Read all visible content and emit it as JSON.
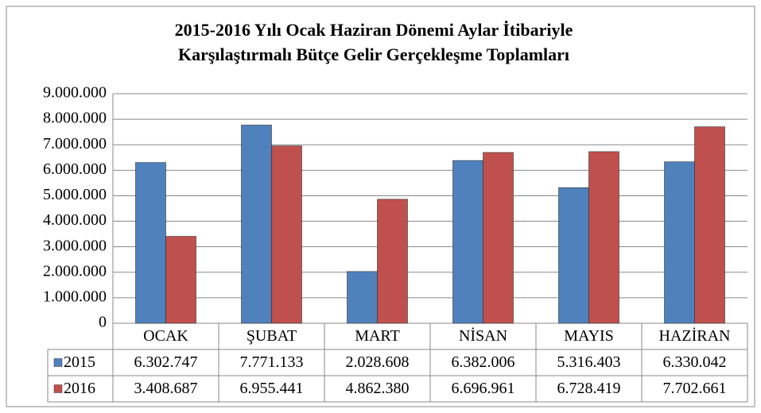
{
  "chart_data": {
    "type": "bar",
    "title": [
      "2015-2016 Yılı Ocak Haziran Dönemi Aylar İtibariyle",
      "Karşılaştırmalı Bütçe Gelir Gerçekleşme Toplamları"
    ],
    "categories": [
      "OCAK",
      "ŞUBAT",
      "MART",
      "NİSAN",
      "MAYIS",
      "HAZİRAN"
    ],
    "series": [
      {
        "name": "2015",
        "color": "#4f81bd",
        "values": [
          6302747,
          7771133,
          2028608,
          6382006,
          5316403,
          6330042
        ],
        "value_labels": [
          "6.302.747",
          "7.771.133",
          "2.028.608",
          "6.382.006",
          "5.316.403",
          "6.330.042"
        ]
      },
      {
        "name": "2016",
        "color": "#c0504d",
        "values": [
          3408687,
          6955441,
          4862380,
          6696961,
          6728419,
          7702661
        ],
        "value_labels": [
          "3.408.687",
          "6.955.441",
          "4.862.380",
          "6.696.961",
          "6.728.419",
          "7.702.661"
        ]
      }
    ],
    "ylim": [
      0,
      9000000
    ],
    "yticks": [
      0,
      {
        "value": 1000000,
        "label": "1.000.000"
      },
      {
        "value": 2000000,
        "label": "2.000.000"
      },
      {
        "value": 3000000,
        "label": "3.000.000"
      },
      {
        "value": 4000000,
        "label": "4.000.000"
      },
      {
        "value": 5000000,
        "label": "5.000.000"
      },
      {
        "value": 6000000,
        "label": "6.000.000"
      },
      {
        "value": 7000000,
        "label": "7.000.000"
      },
      {
        "value": 8000000,
        "label": "8.000.000"
      },
      {
        "value": 9000000,
        "label": "9.000.000"
      }
    ],
    "grid": true
  }
}
